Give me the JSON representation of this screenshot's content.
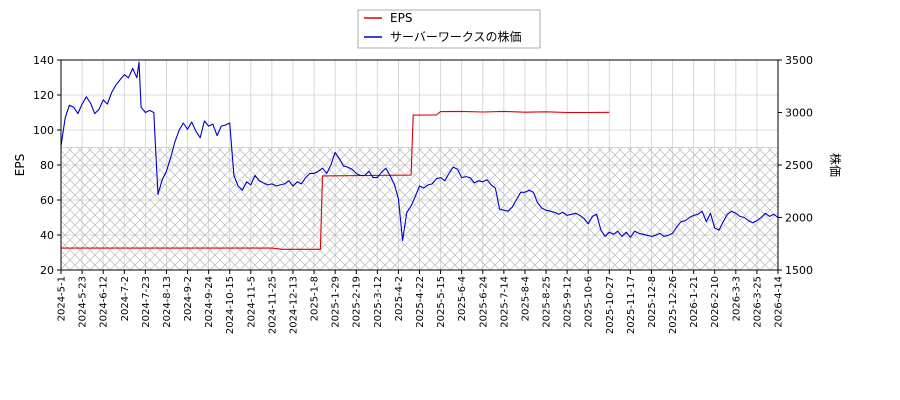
{
  "chart_data": {
    "type": "line",
    "legend": {
      "placement": "top-center",
      "entries": [
        {
          "label": "EPS",
          "color": "#dd0000"
        },
        {
          "label": "サーバーワークスの株価",
          "color": "#0000cc"
        }
      ]
    },
    "y_left": {
      "label": "EPS",
      "lim": [
        20,
        140
      ],
      "ticks": [
        "20",
        "40",
        "60",
        "80",
        "100",
        "120",
        "140"
      ]
    },
    "y_right": {
      "label": "株価",
      "lim": [
        1500,
        3500
      ],
      "ticks": [
        "1500",
        "2000",
        "2500",
        "3000",
        "3500"
      ]
    },
    "x_ticks": [
      "2024-5-1",
      "2024-5-23",
      "2024-6-12",
      "2024-7-2",
      "2024-7-23",
      "2024-8-13",
      "2024-9-2",
      "2024-9-24",
      "2024-10-15",
      "2024-11-5",
      "2024-11-25",
      "2024-12-13",
      "2025-1-8",
      "2025-1-29",
      "2025-2-19",
      "2025-3-12",
      "2025-4-2",
      "2025-4-22",
      "2025-5-15",
      "2025-6-4",
      "2025-6-24",
      "2025-7-14",
      "2025-8-4",
      "2025-8-25",
      "2025-9-12",
      "2025-10-6",
      "2025-10-27",
      "2025-11-17",
      "2025-12-8",
      "2025-12-26",
      "2026-1-21",
      "2026-2-10",
      "2026-3-3",
      "2026-3-25",
      "2026-4-14"
    ],
    "grid": true,
    "hatched_region_y_left": [
      20,
      90
    ],
    "series": [
      {
        "name": "EPS",
        "axis": "left",
        "color": "#dd0000",
        "points": [
          [
            0,
            32.5
          ],
          [
            10,
            32.5
          ],
          [
            10.5,
            31.8
          ],
          [
            12.3,
            31.8
          ],
          [
            12.4,
            73.8
          ],
          [
            16.6,
            74.2
          ],
          [
            16.7,
            108.5
          ],
          [
            17.8,
            108.6
          ],
          [
            18.0,
            110.5
          ],
          [
            19,
            110.6
          ],
          [
            20,
            110.3
          ],
          [
            21,
            110.6
          ],
          [
            22,
            110.2
          ],
          [
            23,
            110.4
          ],
          [
            24,
            110.0
          ],
          [
            25,
            110.0
          ],
          [
            26,
            110.1
          ]
        ]
      },
      {
        "name": "サーバーワークスの株価",
        "axis": "right",
        "color": "#0000cc",
        "points": [
          [
            0.0,
            2680
          ],
          [
            0.2,
            2950
          ],
          [
            0.4,
            3070
          ],
          [
            0.6,
            3050
          ],
          [
            0.8,
            2990
          ],
          [
            1.0,
            3080
          ],
          [
            1.2,
            3150
          ],
          [
            1.4,
            3090
          ],
          [
            1.6,
            2990
          ],
          [
            1.8,
            3030
          ],
          [
            2.0,
            3120
          ],
          [
            2.2,
            3080
          ],
          [
            2.4,
            3190
          ],
          [
            2.6,
            3260
          ],
          [
            2.8,
            3310
          ],
          [
            3.0,
            3360
          ],
          [
            3.2,
            3330
          ],
          [
            3.4,
            3420
          ],
          [
            3.6,
            3330
          ],
          [
            3.7,
            3480
          ],
          [
            3.8,
            3050
          ],
          [
            4.0,
            3000
          ],
          [
            4.2,
            3020
          ],
          [
            4.4,
            3000
          ],
          [
            4.5,
            2600
          ],
          [
            4.6,
            2220
          ],
          [
            4.8,
            2360
          ],
          [
            5.0,
            2440
          ],
          [
            5.2,
            2570
          ],
          [
            5.4,
            2720
          ],
          [
            5.6,
            2830
          ],
          [
            5.8,
            2900
          ],
          [
            6.0,
            2840
          ],
          [
            6.2,
            2910
          ],
          [
            6.4,
            2820
          ],
          [
            6.6,
            2760
          ],
          [
            6.8,
            2920
          ],
          [
            7.0,
            2870
          ],
          [
            7.2,
            2890
          ],
          [
            7.4,
            2780
          ],
          [
            7.6,
            2870
          ],
          [
            7.8,
            2880
          ],
          [
            8.0,
            2900
          ],
          [
            8.2,
            2400
          ],
          [
            8.4,
            2300
          ],
          [
            8.6,
            2260
          ],
          [
            8.8,
            2340
          ],
          [
            9.0,
            2310
          ],
          [
            9.2,
            2400
          ],
          [
            9.4,
            2350
          ],
          [
            9.6,
            2330
          ],
          [
            9.8,
            2310
          ],
          [
            10.0,
            2320
          ],
          [
            10.2,
            2300
          ],
          [
            10.4,
            2310
          ],
          [
            10.6,
            2320
          ],
          [
            10.8,
            2350
          ],
          [
            11.0,
            2300
          ],
          [
            11.2,
            2340
          ],
          [
            11.4,
            2320
          ],
          [
            11.6,
            2380
          ],
          [
            11.8,
            2420
          ],
          [
            12.0,
            2420
          ],
          [
            12.2,
            2440
          ],
          [
            12.4,
            2470
          ],
          [
            12.6,
            2420
          ],
          [
            12.8,
            2500
          ],
          [
            13.0,
            2620
          ],
          [
            13.2,
            2560
          ],
          [
            13.4,
            2490
          ],
          [
            13.6,
            2480
          ],
          [
            13.8,
            2460
          ],
          [
            14.0,
            2420
          ],
          [
            14.2,
            2400
          ],
          [
            14.4,
            2400
          ],
          [
            14.6,
            2440
          ],
          [
            14.8,
            2380
          ],
          [
            15.0,
            2380
          ],
          [
            15.2,
            2430
          ],
          [
            15.4,
            2470
          ],
          [
            15.6,
            2400
          ],
          [
            15.8,
            2320
          ],
          [
            16.0,
            2180
          ],
          [
            16.2,
            1780
          ],
          [
            16.4,
            2050
          ],
          [
            16.6,
            2110
          ],
          [
            16.8,
            2200
          ],
          [
            17.0,
            2300
          ],
          [
            17.2,
            2280
          ],
          [
            17.4,
            2310
          ],
          [
            17.6,
            2320
          ],
          [
            17.8,
            2370
          ],
          [
            18.0,
            2380
          ],
          [
            18.2,
            2350
          ],
          [
            18.4,
            2420
          ],
          [
            18.6,
            2480
          ],
          [
            18.8,
            2460
          ],
          [
            19.0,
            2380
          ],
          [
            19.2,
            2390
          ],
          [
            19.4,
            2380
          ],
          [
            19.6,
            2330
          ],
          [
            19.8,
            2350
          ],
          [
            20.0,
            2340
          ],
          [
            20.2,
            2360
          ],
          [
            20.4,
            2310
          ],
          [
            20.6,
            2280
          ],
          [
            20.8,
            2080
          ],
          [
            21.0,
            2070
          ],
          [
            21.2,
            2060
          ],
          [
            21.4,
            2100
          ],
          [
            21.6,
            2170
          ],
          [
            21.8,
            2240
          ],
          [
            22.0,
            2240
          ],
          [
            22.2,
            2260
          ],
          [
            22.4,
            2240
          ],
          [
            22.6,
            2140
          ],
          [
            22.8,
            2090
          ],
          [
            23.0,
            2070
          ],
          [
            23.2,
            2060
          ],
          [
            23.4,
            2050
          ],
          [
            23.6,
            2030
          ],
          [
            23.8,
            2050
          ],
          [
            24.0,
            2020
          ],
          [
            24.2,
            2030
          ],
          [
            24.4,
            2040
          ],
          [
            24.6,
            2020
          ],
          [
            24.8,
            1990
          ],
          [
            25.0,
            1940
          ],
          [
            25.2,
            2010
          ],
          [
            25.4,
            2030
          ],
          [
            25.6,
            1880
          ],
          [
            25.8,
            1820
          ],
          [
            26.0,
            1860
          ],
          [
            26.2,
            1840
          ],
          [
            26.4,
            1870
          ],
          [
            26.6,
            1820
          ],
          [
            26.8,
            1860
          ],
          [
            27.0,
            1810
          ],
          [
            27.2,
            1870
          ],
          [
            27.4,
            1850
          ],
          [
            27.6,
            1840
          ],
          [
            27.8,
            1830
          ],
          [
            28.0,
            1820
          ],
          [
            28.2,
            1830
          ],
          [
            28.4,
            1850
          ],
          [
            28.6,
            1820
          ],
          [
            28.8,
            1830
          ],
          [
            29.0,
            1850
          ],
          [
            29.2,
            1910
          ],
          [
            29.4,
            1960
          ],
          [
            29.6,
            1970
          ],
          [
            29.8,
            2000
          ],
          [
            30.0,
            2020
          ],
          [
            30.2,
            2030
          ],
          [
            30.4,
            2060
          ],
          [
            30.6,
            1960
          ],
          [
            30.8,
            2040
          ],
          [
            31.0,
            1900
          ],
          [
            31.2,
            1880
          ],
          [
            31.4,
            1960
          ],
          [
            31.6,
            2030
          ],
          [
            31.8,
            2060
          ],
          [
            32.0,
            2040
          ],
          [
            32.2,
            2010
          ],
          [
            32.4,
            2000
          ],
          [
            32.6,
            1970
          ],
          [
            32.8,
            1950
          ],
          [
            33.0,
            1970
          ],
          [
            33.2,
            2000
          ],
          [
            33.4,
            2040
          ],
          [
            33.6,
            2010
          ],
          [
            33.8,
            2030
          ],
          [
            34.0,
            2000
          ],
          [
            34.2,
            2020
          ],
          [
            34.4,
            2010
          ]
        ]
      }
    ]
  }
}
